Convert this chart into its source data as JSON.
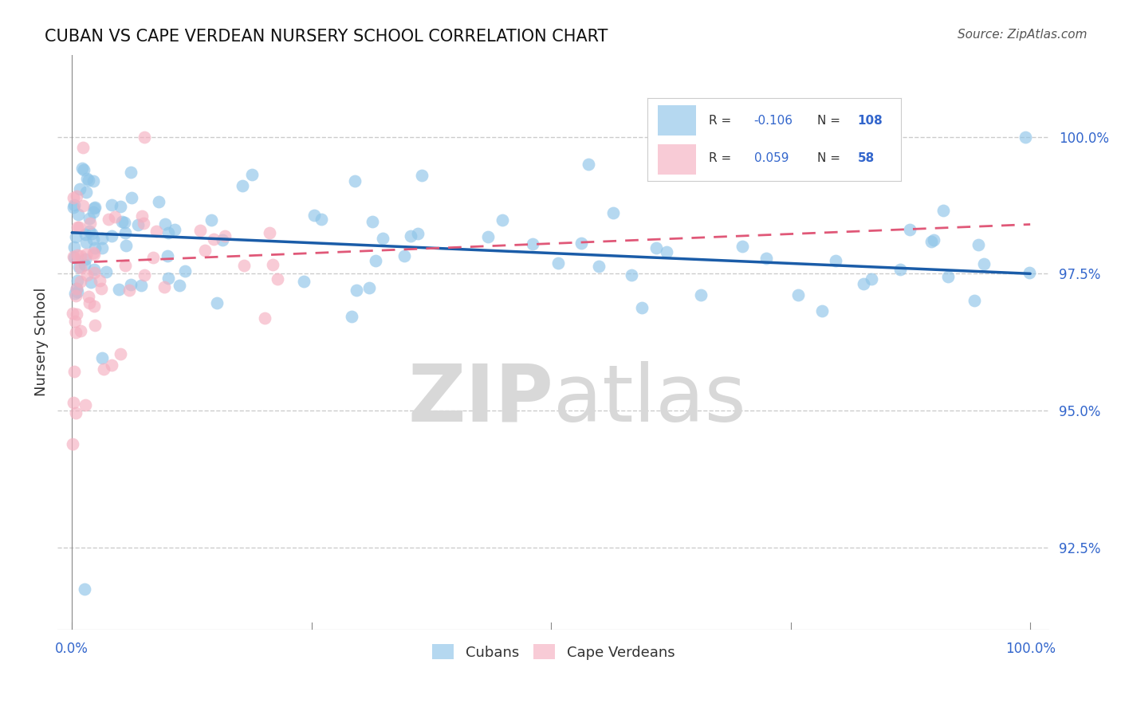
{
  "title": "CUBAN VS CAPE VERDEAN NURSERY SCHOOL CORRELATION CHART",
  "source": "Source: ZipAtlas.com",
  "ylabel": "Nursery School",
  "r_cuban": -0.106,
  "n_cuban": 108,
  "r_cape": 0.059,
  "n_cape": 58,
  "right_yticks": [
    100.0,
    97.5,
    95.0,
    92.5
  ],
  "right_ytick_labels": [
    "100.0%",
    "97.5%",
    "95.0%",
    "92.5%"
  ],
  "ymin": 91.0,
  "ymax": 101.5,
  "xmin": -1.5,
  "xmax": 102,
  "color_cuban": "#8ec4e8",
  "color_cape": "#f5afc0",
  "color_cuban_line": "#1a5ca8",
  "color_cape_line": "#e05878",
  "background_color": "#ffffff",
  "watermark_zip": "ZIP",
  "watermark_atlas": "atlas",
  "cuban_seed": 77,
  "cape_seed": 42
}
